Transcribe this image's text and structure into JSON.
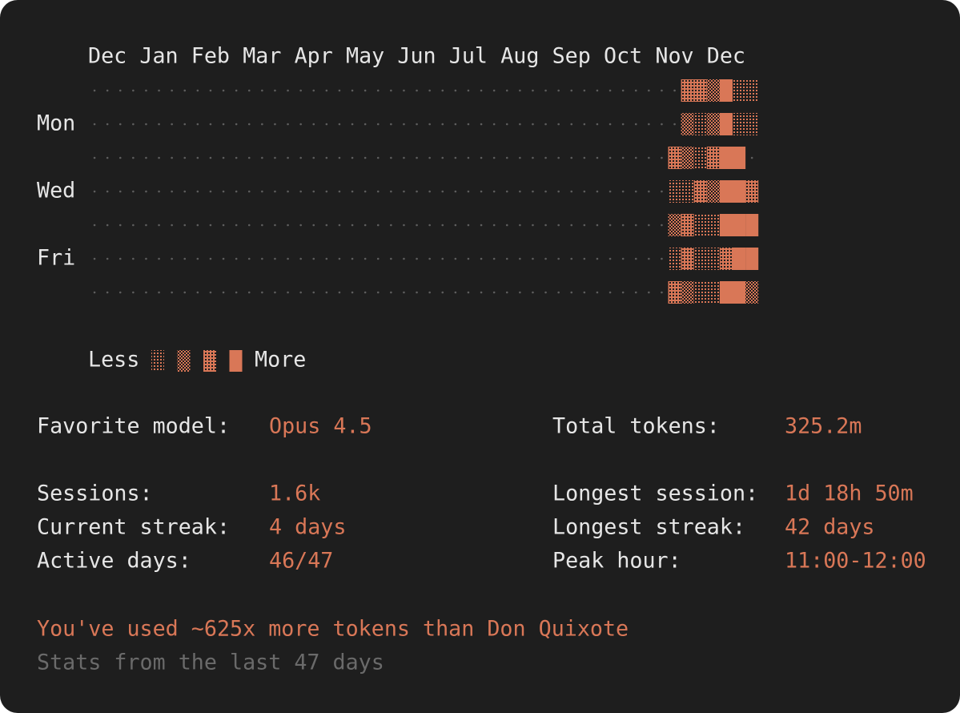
{
  "heatmap": {
    "months": [
      "Dec",
      "Jan",
      "Feb",
      "Mar",
      "Apr",
      "May",
      "Jun",
      "Jul",
      "Aug",
      "Sep",
      "Oct",
      "Nov",
      "Dec"
    ],
    "day_labels": [
      null,
      "Mon",
      null,
      "Wed",
      null,
      "Fri",
      null
    ],
    "rows": [
      [
        null,
        null,
        null,
        null,
        null,
        null,
        null,
        null,
        null,
        null,
        null,
        null,
        null,
        null,
        null,
        null,
        null,
        null,
        null,
        null,
        null,
        null,
        null,
        null,
        null,
        null,
        null,
        null,
        null,
        null,
        null,
        null,
        null,
        null,
        null,
        null,
        null,
        null,
        null,
        null,
        null,
        null,
        null,
        null,
        null,
        null,
        3,
        3,
        2,
        4,
        1,
        1
      ],
      [
        null,
        null,
        null,
        null,
        null,
        null,
        null,
        null,
        null,
        null,
        null,
        null,
        null,
        null,
        null,
        null,
        null,
        null,
        null,
        null,
        null,
        null,
        null,
        null,
        null,
        null,
        null,
        null,
        null,
        null,
        null,
        null,
        null,
        null,
        null,
        null,
        null,
        null,
        null,
        null,
        null,
        null,
        null,
        null,
        null,
        null,
        2,
        1,
        2,
        4,
        1,
        1
      ],
      [
        null,
        null,
        null,
        null,
        null,
        null,
        null,
        null,
        null,
        null,
        null,
        null,
        null,
        null,
        null,
        null,
        null,
        null,
        null,
        null,
        null,
        null,
        null,
        null,
        null,
        null,
        null,
        null,
        null,
        null,
        null,
        null,
        null,
        null,
        null,
        null,
        null,
        null,
        null,
        null,
        null,
        null,
        null,
        null,
        null,
        3,
        2,
        1,
        3,
        4,
        4,
        0
      ],
      [
        null,
        null,
        null,
        null,
        null,
        null,
        null,
        null,
        null,
        null,
        null,
        null,
        null,
        null,
        null,
        null,
        null,
        null,
        null,
        null,
        null,
        null,
        null,
        null,
        null,
        null,
        null,
        null,
        null,
        null,
        null,
        null,
        null,
        null,
        null,
        null,
        null,
        null,
        null,
        null,
        null,
        null,
        null,
        null,
        null,
        1,
        1,
        3,
        2,
        4,
        4,
        3
      ],
      [
        null,
        null,
        null,
        null,
        null,
        null,
        null,
        null,
        null,
        null,
        null,
        null,
        null,
        null,
        null,
        null,
        null,
        null,
        null,
        null,
        null,
        null,
        null,
        null,
        null,
        null,
        null,
        null,
        null,
        null,
        null,
        null,
        null,
        null,
        null,
        null,
        null,
        null,
        null,
        null,
        null,
        null,
        null,
        null,
        null,
        2,
        3,
        1,
        1,
        4,
        4,
        4
      ],
      [
        null,
        null,
        null,
        null,
        null,
        null,
        null,
        null,
        null,
        null,
        null,
        null,
        null,
        null,
        null,
        null,
        null,
        null,
        null,
        null,
        null,
        null,
        null,
        null,
        null,
        null,
        null,
        null,
        null,
        null,
        null,
        null,
        null,
        null,
        null,
        null,
        null,
        null,
        null,
        null,
        null,
        null,
        null,
        null,
        null,
        1,
        3,
        1,
        1,
        3,
        4,
        4
      ],
      [
        null,
        null,
        null,
        null,
        null,
        null,
        null,
        null,
        null,
        null,
        null,
        null,
        null,
        null,
        null,
        null,
        null,
        null,
        null,
        null,
        null,
        null,
        null,
        null,
        null,
        null,
        null,
        null,
        null,
        null,
        null,
        null,
        null,
        null,
        null,
        null,
        null,
        null,
        null,
        null,
        null,
        null,
        null,
        null,
        null,
        3,
        2,
        1,
        1,
        4,
        4,
        2
      ]
    ],
    "legend_less": "Less",
    "legend_more": "More"
  },
  "stats": {
    "left": [
      {
        "label": "Favorite model:",
        "value": "Opus 4.5"
      },
      {
        "label": "Sessions:",
        "value": "1.6k"
      },
      {
        "label": "Current streak:",
        "value": "4 days"
      },
      {
        "label": "Active days:",
        "value": "46/47"
      }
    ],
    "right": [
      {
        "label": "Total tokens:",
        "value": "325.2m"
      },
      {
        "label": "Longest session:",
        "value": "1d 18h 50m"
      },
      {
        "label": "Longest streak:",
        "value": "42 days"
      },
      {
        "label": "Peak hour:",
        "value": "11:00-12:00"
      }
    ]
  },
  "footer": {
    "fun_fact": "You've used ~625x more tokens than Don Quixote",
    "note": "Stats from the last 47 days"
  }
}
